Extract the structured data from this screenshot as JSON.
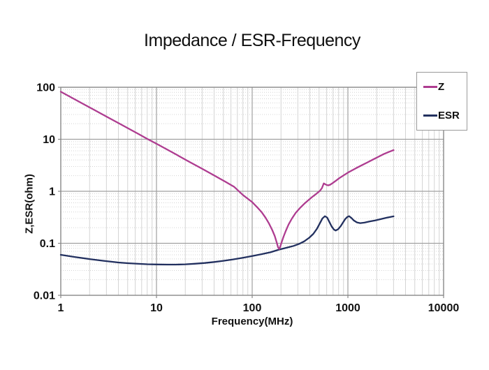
{
  "chart_data": {
    "type": "line",
    "title": "Impedance / ESR-Frequency",
    "xlabel": "Frequency(MHz)",
    "ylabel": "Z,ESR(ohm)",
    "x_scale": "log",
    "y_scale": "log",
    "xlim": [
      1,
      10000
    ],
    "ylim": [
      0.01,
      100
    ],
    "x_ticks": [
      1,
      10,
      100,
      1000,
      10000
    ],
    "y_ticks": [
      100,
      10,
      1,
      0.1,
      0.01
    ],
    "grid": "major and minor log grid on",
    "legend_position": "top-right",
    "resonance_note_MHz": 190,
    "series": [
      {
        "name": "Z",
        "color": "#ae3c90",
        "points": [
          [
            1,
            82
          ],
          [
            1.3,
            63
          ],
          [
            1.7,
            48.2
          ],
          [
            2.2,
            37.3
          ],
          [
            3,
            27.3
          ],
          [
            4,
            20.5
          ],
          [
            5,
            16.4
          ],
          [
            6.5,
            12.6
          ],
          [
            8,
            10.2
          ],
          [
            10,
            8.2
          ],
          [
            13,
            6.3
          ],
          [
            17,
            4.8
          ],
          [
            22,
            3.7
          ],
          [
            30,
            2.71
          ],
          [
            40,
            2.02
          ],
          [
            52,
            1.54
          ],
          [
            65,
            1.21
          ],
          [
            80,
            0.85
          ],
          [
            100,
            0.62
          ],
          [
            112,
            0.5
          ],
          [
            125,
            0.4
          ],
          [
            138,
            0.31
          ],
          [
            150,
            0.24
          ],
          [
            162,
            0.18
          ],
          [
            172,
            0.138
          ],
          [
            180,
            0.105
          ],
          [
            186,
            0.085
          ],
          [
            191,
            0.0775
          ],
          [
            196,
            0.085
          ],
          [
            203,
            0.104
          ],
          [
            212,
            0.132
          ],
          [
            224,
            0.172
          ],
          [
            240,
            0.23
          ],
          [
            260,
            0.3
          ],
          [
            285,
            0.385
          ],
          [
            315,
            0.475
          ],
          [
            350,
            0.575
          ],
          [
            390,
            0.685
          ],
          [
            430,
            0.795
          ],
          [
            470,
            0.9
          ],
          [
            510,
            1.02
          ],
          [
            535,
            1.15
          ],
          [
            550,
            1.3
          ],
          [
            560,
            1.42
          ],
          [
            575,
            1.38
          ],
          [
            600,
            1.32
          ],
          [
            625,
            1.3
          ],
          [
            655,
            1.34
          ],
          [
            700,
            1.46
          ],
          [
            750,
            1.6
          ],
          [
            810,
            1.78
          ],
          [
            900,
            2.02
          ],
          [
            1000,
            2.28
          ],
          [
            1120,
            2.56
          ],
          [
            1260,
            2.88
          ],
          [
            1420,
            3.22
          ],
          [
            1600,
            3.6
          ],
          [
            1820,
            4.05
          ],
          [
            2080,
            4.6
          ],
          [
            2370,
            5.2
          ],
          [
            2700,
            5.75
          ],
          [
            3000,
            6.2
          ]
        ]
      },
      {
        "name": "ESR",
        "color": "#22305f",
        "points": [
          [
            1,
            0.06
          ],
          [
            1.4,
            0.0545
          ],
          [
            2,
            0.0498
          ],
          [
            2.8,
            0.046
          ],
          [
            4,
            0.0428
          ],
          [
            5,
            0.0415
          ],
          [
            6.5,
            0.0403
          ],
          [
            8,
            0.0396
          ],
          [
            10,
            0.0392
          ],
          [
            13,
            0.039
          ],
          [
            16,
            0.039
          ],
          [
            20,
            0.0394
          ],
          [
            25,
            0.0404
          ],
          [
            32,
            0.0418
          ],
          [
            40,
            0.0437
          ],
          [
            50,
            0.046
          ],
          [
            63,
            0.049
          ],
          [
            80,
            0.0528
          ],
          [
            100,
            0.057
          ],
          [
            125,
            0.0618
          ],
          [
            155,
            0.0672
          ],
          [
            190,
            0.0755
          ],
          [
            230,
            0.0822
          ],
          [
            270,
            0.089
          ],
          [
            310,
            0.0975
          ],
          [
            350,
            0.109
          ],
          [
            395,
            0.128
          ],
          [
            435,
            0.152
          ],
          [
            475,
            0.19
          ],
          [
            510,
            0.243
          ],
          [
            542,
            0.301
          ],
          [
            575,
            0.332
          ],
          [
            608,
            0.312
          ],
          [
            640,
            0.258
          ],
          [
            678,
            0.209
          ],
          [
            712,
            0.185
          ],
          [
            745,
            0.176
          ],
          [
            790,
            0.186
          ],
          [
            838,
            0.212
          ],
          [
            888,
            0.25
          ],
          [
            938,
            0.292
          ],
          [
            985,
            0.321
          ],
          [
            1030,
            0.332
          ],
          [
            1085,
            0.308
          ],
          [
            1155,
            0.274
          ],
          [
            1245,
            0.252
          ],
          [
            1345,
            0.244
          ],
          [
            1490,
            0.25
          ],
          [
            1680,
            0.262
          ],
          [
            1930,
            0.276
          ],
          [
            2220,
            0.293
          ],
          [
            2560,
            0.311
          ],
          [
            3000,
            0.33
          ]
        ]
      }
    ]
  },
  "colors": {
    "background": "#ffffff",
    "grid_major": "#a0a0a0",
    "grid_minor": "#d4d4d4",
    "plot_border": "#888888",
    "text": "#111111",
    "z_line": "#ae3c90",
    "esr_line": "#22305f"
  }
}
